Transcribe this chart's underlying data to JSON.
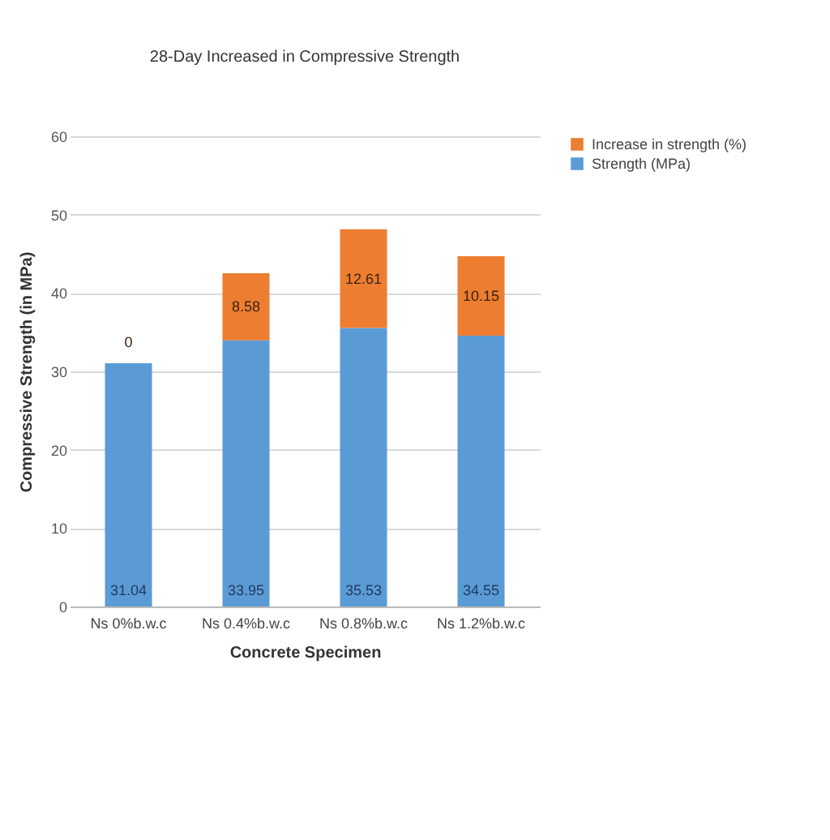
{
  "chart_data": {
    "type": "bar",
    "title": "28-Day Increased in Compressive Strength",
    "xlabel": "Concrete Specimen",
    "ylabel": "Compressive Strength (in MPa)",
    "categories": [
      "Ns 0%b.w.c",
      "Ns 0.4%b.w.c",
      "Ns 0.8%b.w.c",
      "Ns 1.2%b.w.c"
    ],
    "series": [
      {
        "name": "Strength (MPa)",
        "color": "#5b9bd5",
        "values": [
          31.04,
          33.95,
          35.53,
          34.55
        ]
      },
      {
        "name": "Increase in strength (%)",
        "color": "#ed7d31",
        "values": [
          0,
          8.58,
          12.61,
          10.15
        ]
      }
    ],
    "stacked": true,
    "ylim": [
      0,
      60
    ],
    "yticks": [
      0,
      10,
      20,
      30,
      40,
      50,
      60
    ],
    "grid": "y",
    "legend": "right",
    "data_labels": true
  }
}
